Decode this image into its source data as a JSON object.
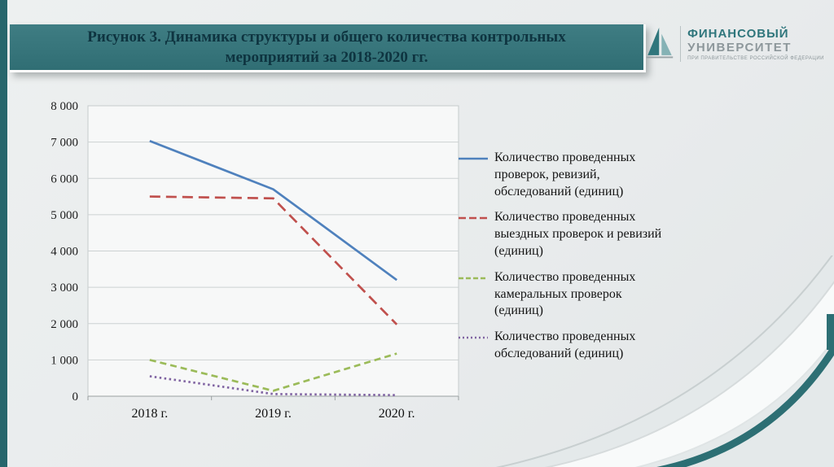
{
  "slide": {
    "title": "Рисунок 3. Динамика структуры и общего количества контрольных мероприятий за 2018-2020 гг."
  },
  "logo": {
    "line1": "ФИНАНСОВЫЙ",
    "line2": "УНИВЕРСИТЕТ",
    "line3": "ПРИ ПРАВИТЕЛЬСТВЕ РОССИЙСКОЙ ФЕДЕРАЦИИ"
  },
  "chart_data": {
    "type": "line",
    "title": "Динамика структуры и общего количества контрольных мероприятий за 2018-2020 гг.",
    "x": [
      "2018 г.",
      "2019 г.",
      "2020 г."
    ],
    "ylim": [
      0,
      8000
    ],
    "yticks": [
      8000,
      7000,
      6000,
      5000,
      4000,
      3000,
      2000,
      1000,
      0
    ],
    "ytick_labels": [
      "8 000",
      "7 000",
      "6 000",
      "5 000",
      "4 000",
      "3 000",
      "2 000",
      "1 000",
      "0"
    ],
    "grid": true,
    "legend_position": "right",
    "series": [
      {
        "name": "Количество проведенных проверок, ревизий, обследований (единиц)",
        "values": [
          7030,
          5700,
          3200
        ],
        "color": "#4F81BD",
        "style": "solid"
      },
      {
        "name": "Количество проведенных выездных проверок и ревизий (единиц)",
        "values": [
          5500,
          5450,
          1975
        ],
        "color": "#C0504D",
        "style": "dash"
      },
      {
        "name": "Количество проведенных камеральных проверок (единиц)",
        "values": [
          1000,
          150,
          1175
        ],
        "color": "#9BBB59",
        "style": "dash-short"
      },
      {
        "name": "Количество проведенных обследований (единиц)",
        "values": [
          550,
          60,
          30
        ],
        "color": "#8064A2",
        "style": "dot"
      }
    ],
    "colors": {
      "accent_teal": "#2D6F74",
      "grid": "#CCD1D2"
    }
  }
}
